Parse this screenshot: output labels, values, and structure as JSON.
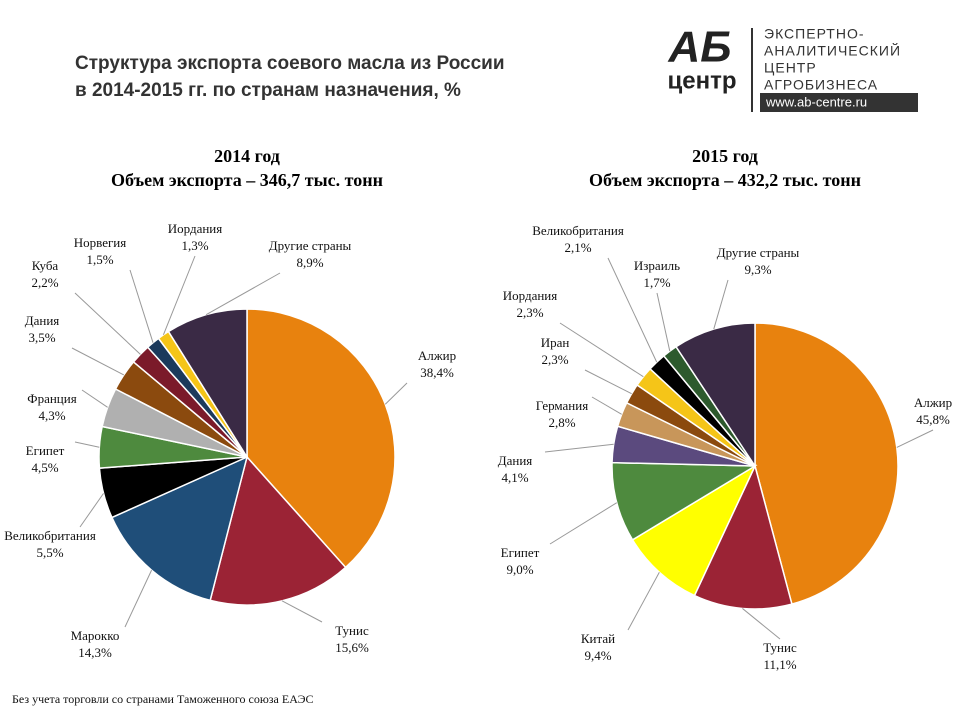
{
  "header": {
    "title_lines": [
      "Структура экспорта соевого масла из России",
      "в 2014-2015 гг. по странам назначения, %"
    ],
    "logo": {
      "mark_top": "АБ",
      "mark_bottom": "центр",
      "lines": [
        "ЭКСПЕРТНО-",
        "АНАЛИТИЧЕСКИЙ",
        "ЦЕНТР",
        "АГРОБИЗНЕСА"
      ],
      "url": "www.ab-centre.ru"
    }
  },
  "chart_data": [
    {
      "type": "pie",
      "title": "2014 год",
      "subtitle": "Объем экспорта  – 346,7 тыс. тонн",
      "categories": [
        "Алжир",
        "Тунис",
        "Марокко",
        "Великобритания",
        "Египет",
        "Франция",
        "Дания",
        "Куба",
        "Норвегия",
        "Иордания",
        "Другие страны"
      ],
      "values": [
        38.4,
        15.6,
        14.3,
        5.5,
        4.5,
        4.3,
        3.5,
        2.2,
        1.5,
        1.3,
        8.9
      ],
      "value_labels": [
        "38,4%",
        "15,6%",
        "14,3%",
        "5,5%",
        "4,5%",
        "4,3%",
        "3,5%",
        "2,2%",
        "1,5%",
        "1,3%",
        "8,9%"
      ],
      "colors": [
        "#e8820e",
        "#9b2335",
        "#1f4e79",
        "#000000",
        "#4e8a3e",
        "#b0b0b0",
        "#8b4a0e",
        "#7b1a2a",
        "#1b3a5c",
        "#f5c518",
        "#3a2a45"
      ]
    },
    {
      "type": "pie",
      "title": "2015 год",
      "subtitle": "Объем экспорта  – 432,2 тыс. тонн",
      "categories": [
        "Алжир",
        "Тунис",
        "Китай",
        "Египет",
        "Дания",
        "Германия",
        "Иран",
        "Иордания",
        "Великобритания",
        "Израиль",
        "Другие страны"
      ],
      "values": [
        45.8,
        11.1,
        9.4,
        9.0,
        4.1,
        2.8,
        2.3,
        2.3,
        2.1,
        1.7,
        9.3
      ],
      "value_labels": [
        "45,8%",
        "11,1%",
        "9,4%",
        "9,0%",
        "4,1%",
        "2,8%",
        "2,3%",
        "2,3%",
        "2,1%",
        "1,7%",
        "9,3%"
      ],
      "colors": [
        "#e8820e",
        "#9b2335",
        "#ffff00",
        "#4e8a3e",
        "#5b4a7e",
        "#c8965a",
        "#8b4a0e",
        "#f5c518",
        "#000000",
        "#2d5a2d",
        "#3a2a45"
      ]
    }
  ],
  "footnote": "Без учета торговли со странами Таможенного союза ЕАЭС"
}
